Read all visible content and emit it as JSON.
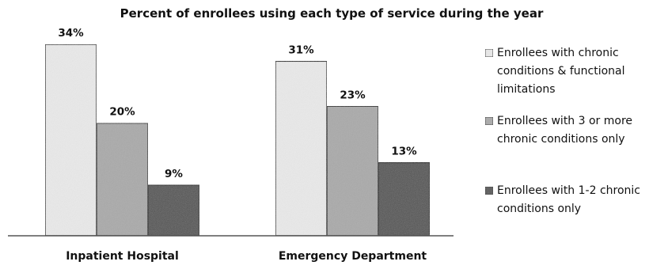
{
  "chart_data": {
    "type": "bar",
    "title": "Percent of enrollees using each type of service during the year",
    "categories": [
      "Inpatient Hospital",
      "Emergency Department"
    ],
    "series": [
      {
        "name": "Enrollees with chronic conditions & functional limitations",
        "values": [
          34,
          31
        ],
        "labels": [
          "34%",
          "31%"
        ],
        "color": "#ececec"
      },
      {
        "name": "Enrollees with 3 or more chronic conditions only",
        "values": [
          20,
          23
        ],
        "labels": [
          "20%",
          "23%"
        ],
        "color": "#a9a9a9"
      },
      {
        "name": "Enrollees with 1-2 chronic conditions only",
        "values": [
          9,
          13
        ],
        "labels": [
          "9%",
          "13%"
        ],
        "color": "#4b4b4b"
      }
    ],
    "legend": {
      "position": "right",
      "lines": [
        [
          "Enrollees with chronic",
          "conditions & functional",
          "limitations"
        ],
        [
          "Enrollees with 3 or more",
          "chronic conditions only"
        ],
        [
          "Enrollees with 1-2 chronic",
          "conditions only"
        ]
      ]
    },
    "ylim": [
      0,
      38
    ],
    "grid": false,
    "xlabel": "",
    "ylabel": ""
  }
}
